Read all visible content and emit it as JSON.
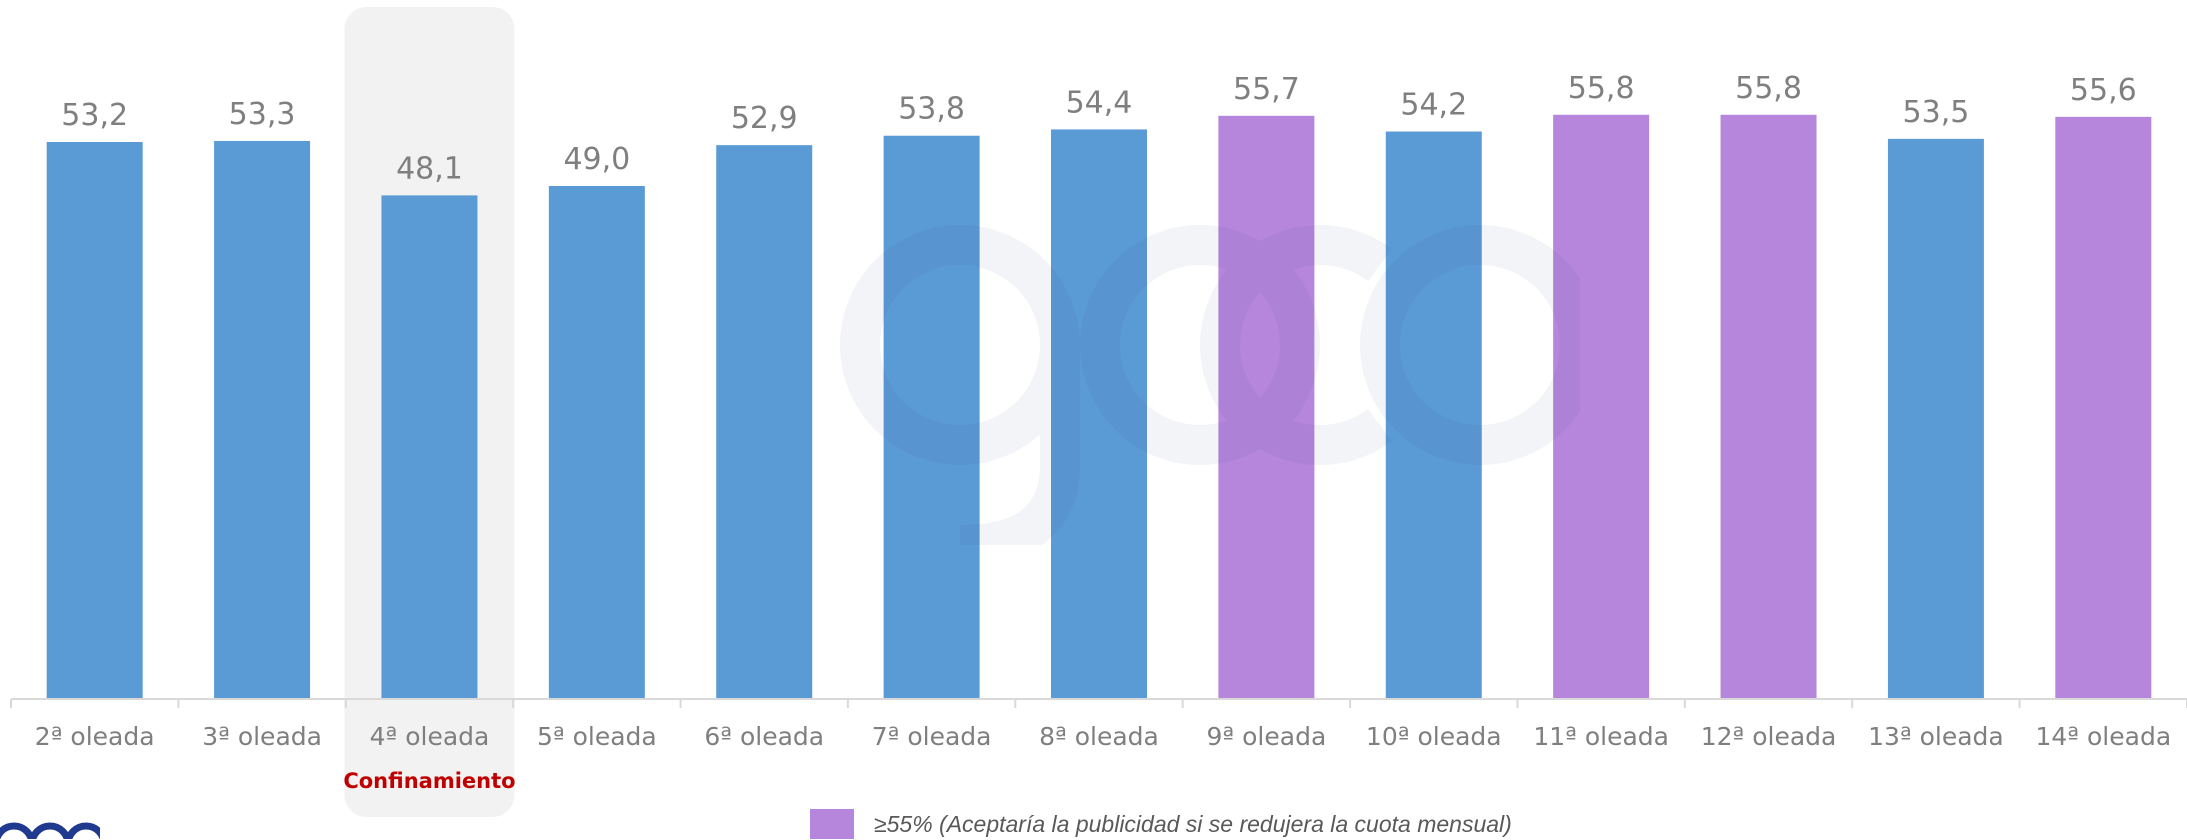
{
  "chart_data": {
    "type": "bar",
    "categories": [
      "2ª oleada",
      "3ª oleada",
      "4ª oleada",
      "5ª oleada",
      "6ª oleada",
      "7ª oleada",
      "8ª oleada",
      "9ª oleada",
      "10ª oleada",
      "11ª oleada",
      "12ª oleada",
      "13ª oleada",
      "14ª oleada"
    ],
    "values": [
      53.2,
      53.3,
      48.1,
      49.0,
      52.9,
      53.8,
      54.4,
      55.7,
      54.2,
      55.8,
      55.8,
      53.5,
      55.6
    ],
    "value_labels": [
      "53,2",
      "53,3",
      "48,1",
      "49,0",
      "52,9",
      "53,8",
      "54,4",
      "55,7",
      "54,2",
      "55,8",
      "55,8",
      "53,5",
      "55,6"
    ],
    "threshold": 55,
    "colors": {
      "default": "#5b9bd5",
      "above_threshold": "#b586db"
    },
    "highlight": {
      "category": "4ª oleada",
      "note": "Confinamiento"
    },
    "legend": {
      "label": "≥55% (Aceptaría la publicidad si se redujera la cuota mensual)",
      "color": "#b586db",
      "position": "bottom-center"
    },
    "ylim": [
      0,
      58
    ],
    "grid": false
  }
}
